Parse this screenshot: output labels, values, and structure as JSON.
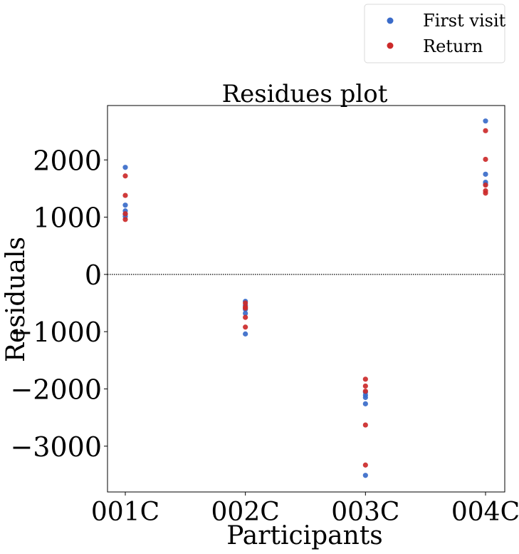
{
  "chart_data": {
    "type": "scatter",
    "title": "Residues plot",
    "xlabel": "Participants",
    "ylabel": "Residuals",
    "categories": [
      "001C",
      "002C",
      "003C",
      "004C"
    ],
    "ylim": [
      -3800,
      2950
    ],
    "yticks": [
      -3000,
      -2000,
      -1000,
      0,
      1000,
      2000
    ],
    "ytick_labels": [
      "−3000",
      "−2000",
      "−1000",
      "0",
      "1000",
      "2000"
    ],
    "reference_line": {
      "y": 0,
      "style": "dotted",
      "color": "#000000"
    },
    "legend": {
      "placement": "top-right, outside plot"
    },
    "series": [
      {
        "name": "First visit",
        "color": "#3a6bc9",
        "points": [
          {
            "x": "001C",
            "y": 1870
          },
          {
            "x": "001C",
            "y": 1210
          },
          {
            "x": "001C",
            "y": 1110
          },
          {
            "x": "001C",
            "y": 1050
          },
          {
            "x": "001C",
            "y": 1010
          },
          {
            "x": "002C",
            "y": -470
          },
          {
            "x": "002C",
            "y": -540
          },
          {
            "x": "002C",
            "y": -610
          },
          {
            "x": "002C",
            "y": -680
          },
          {
            "x": "002C",
            "y": -1040
          },
          {
            "x": "003C",
            "y": -2060
          },
          {
            "x": "003C",
            "y": -2110
          },
          {
            "x": "003C",
            "y": -2150
          },
          {
            "x": "003C",
            "y": -2260
          },
          {
            "x": "003C",
            "y": -3510
          },
          {
            "x": "004C",
            "y": 2680
          },
          {
            "x": "004C",
            "y": 1750
          },
          {
            "x": "004C",
            "y": 1610
          },
          {
            "x": "004C",
            "y": 1580
          }
        ]
      },
      {
        "name": "Return",
        "color": "#cc2a2a",
        "points": [
          {
            "x": "001C",
            "y": 1720
          },
          {
            "x": "001C",
            "y": 1380
          },
          {
            "x": "001C",
            "y": 1060
          },
          {
            "x": "001C",
            "y": 960
          },
          {
            "x": "002C",
            "y": -500
          },
          {
            "x": "002C",
            "y": -570
          },
          {
            "x": "002C",
            "y": -590
          },
          {
            "x": "002C",
            "y": -750
          },
          {
            "x": "002C",
            "y": -920
          },
          {
            "x": "003C",
            "y": -1830
          },
          {
            "x": "003C",
            "y": -1950
          },
          {
            "x": "003C",
            "y": -2040
          },
          {
            "x": "003C",
            "y": -2630
          },
          {
            "x": "003C",
            "y": -3330
          },
          {
            "x": "004C",
            "y": 2510
          },
          {
            "x": "004C",
            "y": 2010
          },
          {
            "x": "004C",
            "y": 1560
          },
          {
            "x": "004C",
            "y": 1460
          },
          {
            "x": "004C",
            "y": 1420
          }
        ]
      }
    ]
  }
}
